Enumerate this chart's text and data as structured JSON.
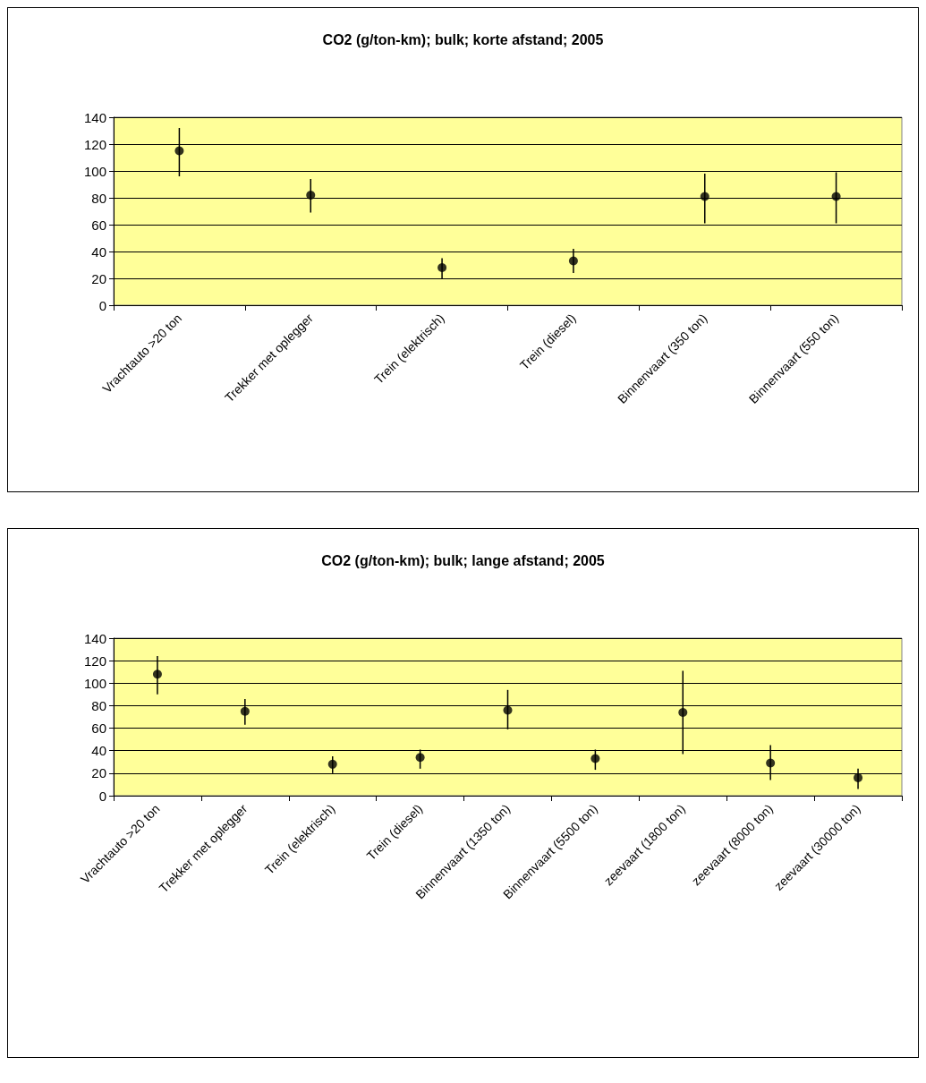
{
  "chart_data": [
    {
      "type": "scatter",
      "title": "CO2 (g/ton-km); bulk; korte afstand; 2005",
      "categories": [
        "Vrachtauto >20 ton",
        "Trekker met oplegger",
        "Trein (elektrisch)",
        "Trein (diesel)",
        "Binnenvaart (350 ton)",
        "Binnenvaart (550 ton)"
      ],
      "values": [
        115,
        82,
        28,
        33,
        81,
        81
      ],
      "errors": [
        [
          96,
          132
        ],
        [
          69,
          94
        ],
        [
          20,
          35
        ],
        [
          24,
          42
        ],
        [
          61,
          98
        ],
        [
          61,
          99
        ]
      ],
      "color": "#000000",
      "ylim": [
        0,
        140
      ],
      "yticks": [
        0,
        20,
        40,
        60,
        80,
        100,
        120,
        140
      ],
      "grid": "y",
      "marker": "circle"
    },
    {
      "type": "scatter",
      "title": "CO2 (g/ton-km); bulk; lange afstand; 2005",
      "categories": [
        "Vrachtauto >20 ton",
        "Trekker met oplegger",
        "Trein (elektrisch)",
        "Trein (diesel)",
        "Binnenvaart (1350 ton)",
        "Binnenvaart (5500 ton)",
        "zeevaart (1800 ton)",
        "zeevaart (8000 ton)",
        "zeevaart (30000 ton)"
      ],
      "values": [
        108,
        75,
        28,
        34,
        76,
        33,
        74,
        29,
        16
      ],
      "errors": [
        [
          90,
          124
        ],
        [
          63,
          86
        ],
        [
          20,
          35
        ],
        [
          24,
          41
        ],
        [
          59,
          94
        ],
        [
          23,
          41
        ],
        [
          37,
          111
        ],
        [
          14,
          45
        ],
        [
          6,
          24
        ]
      ],
      "color": "#000000",
      "ylim": [
        0,
        140
      ],
      "yticks": [
        0,
        20,
        40,
        60,
        80,
        100,
        120,
        140
      ],
      "grid": "y",
      "marker": "circle"
    }
  ]
}
